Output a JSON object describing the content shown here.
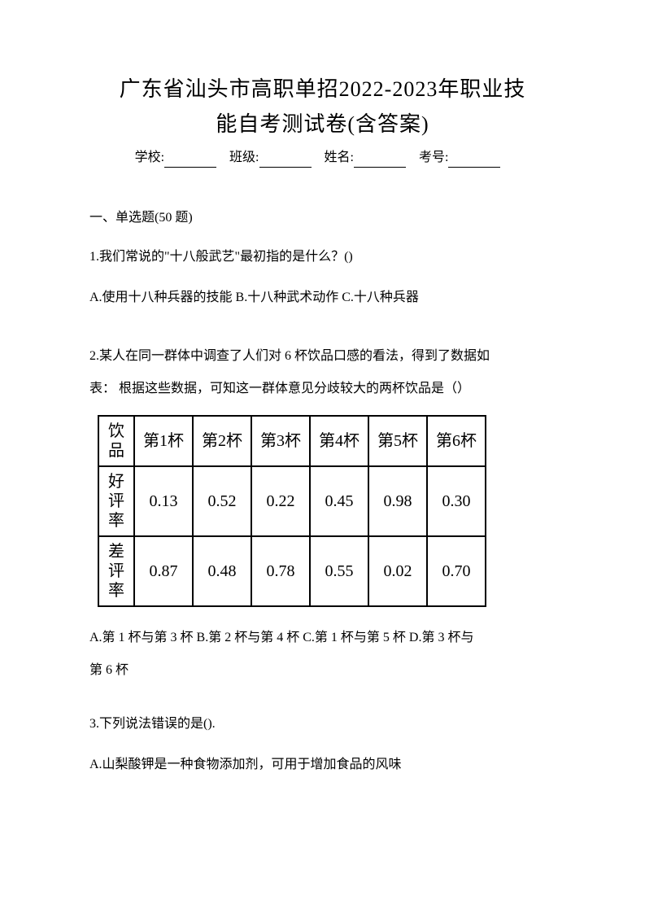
{
  "title_line1": "广东省汕头市高职单招2022-2023年职业技",
  "title_line2": "能自考测试卷(含答案)",
  "info": {
    "school_label": "学校:",
    "class_label": "班级:",
    "name_label": "姓名:",
    "exam_no_label": "考号:"
  },
  "section1": {
    "header": "一、单选题(50 题)"
  },
  "q1": {
    "text": "1.我们常说的\"十八般武艺\"最初指的是什么？()",
    "options": "A.使用十八种兵器的技能  B.十八种武术动作  C.十八种兵器"
  },
  "q2": {
    "text_line1": "2.某人在同一群体中调查了人们对 6 杯饮品口感的看法，得到了数据如",
    "text_line2": "表：   根据这些数据，可知这一群体意见分歧较大的两杯饮品是（）",
    "table": {
      "row_headers": [
        "饮品",
        "好评率",
        "差评率"
      ],
      "col_headers": [
        "第1杯",
        "第2杯",
        "第3杯",
        "第4杯",
        "第5杯",
        "第6杯"
      ],
      "rows": [
        [
          "0.13",
          "0.52",
          "0.22",
          "0.45",
          "0.98",
          "0.30"
        ],
        [
          "0.87",
          "0.48",
          "0.78",
          "0.55",
          "0.02",
          "0.70"
        ]
      ],
      "border_color": "#000000",
      "background_color": "#ffffff",
      "font_size": 20
    },
    "options_line1": "A.第 1 杯与第 3 杯  B.第 2 杯与第 4 杯  C.第 1 杯与第 5 杯  D.第 3 杯与",
    "options_line2": "第 6 杯"
  },
  "q3": {
    "text": "3.下列说法错误的是().",
    "option_a": "A.山梨酸钾是一种食物添加剂，可用于增加食品的风味"
  }
}
